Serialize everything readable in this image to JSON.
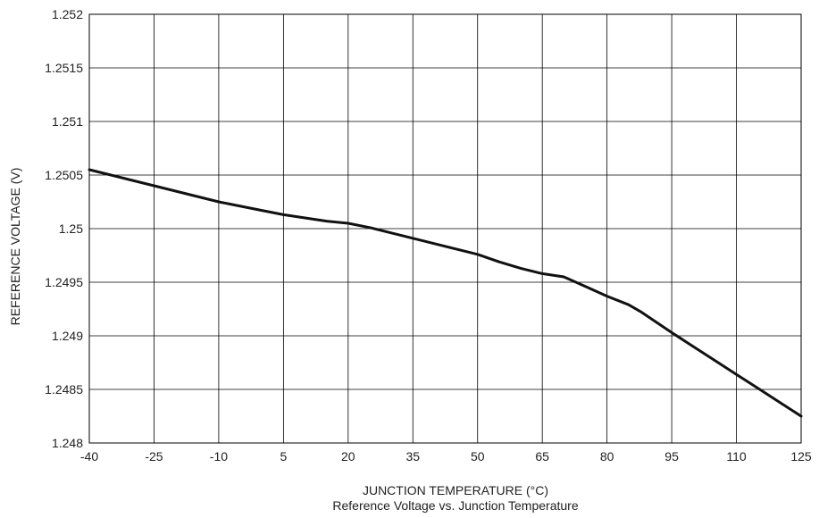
{
  "chart_data": {
    "type": "line",
    "title": "",
    "caption": "Reference Voltage vs. Junction Temperature",
    "xlabel": "JUNCTION TEMPERATURE (°C)",
    "ylabel": "REFERENCE VOLTAGE (V)",
    "xlim": [
      -40,
      125
    ],
    "ylim": [
      1.248,
      1.252
    ],
    "x_ticks": [
      -40,
      -25,
      -10,
      5,
      20,
      35,
      50,
      65,
      80,
      95,
      110,
      125
    ],
    "x_tick_labels": [
      "-40",
      "-25",
      "-10",
      "5",
      "20",
      "35",
      "50",
      "65",
      "80",
      "95",
      "110",
      "125"
    ],
    "y_ticks": [
      1.248,
      1.2485,
      1.249,
      1.2495,
      1.25,
      1.2505,
      1.251,
      1.2515,
      1.252
    ],
    "y_tick_labels": [
      "1.248",
      "1.2485",
      "1.249",
      "1.2495",
      "1.25",
      "1.2505",
      "1.251",
      "1.2515",
      "1.252"
    ],
    "grid": true,
    "line_color": "#111111",
    "grid_color": "#000000",
    "series": [
      {
        "x": [
          -40,
          -30,
          -25,
          -15,
          -10,
          0,
          5,
          10,
          15,
          20,
          25,
          30,
          35,
          40,
          45,
          50,
          55,
          60,
          65,
          70,
          75,
          80,
          85,
          88,
          95,
          100,
          105,
          110,
          115,
          120,
          125
        ],
        "y": [
          1.25055,
          1.25045,
          1.2504,
          1.2503,
          1.25025,
          1.25017,
          1.25013,
          1.2501,
          1.25007,
          1.25005,
          1.25001,
          1.24996,
          1.24991,
          1.24986,
          1.24981,
          1.24976,
          1.24969,
          1.24963,
          1.24958,
          1.24955,
          1.24946,
          1.24937,
          1.24929,
          1.24922,
          1.24903,
          1.2489,
          1.24877,
          1.24864,
          1.24851,
          1.24838,
          1.24825
        ]
      }
    ]
  }
}
